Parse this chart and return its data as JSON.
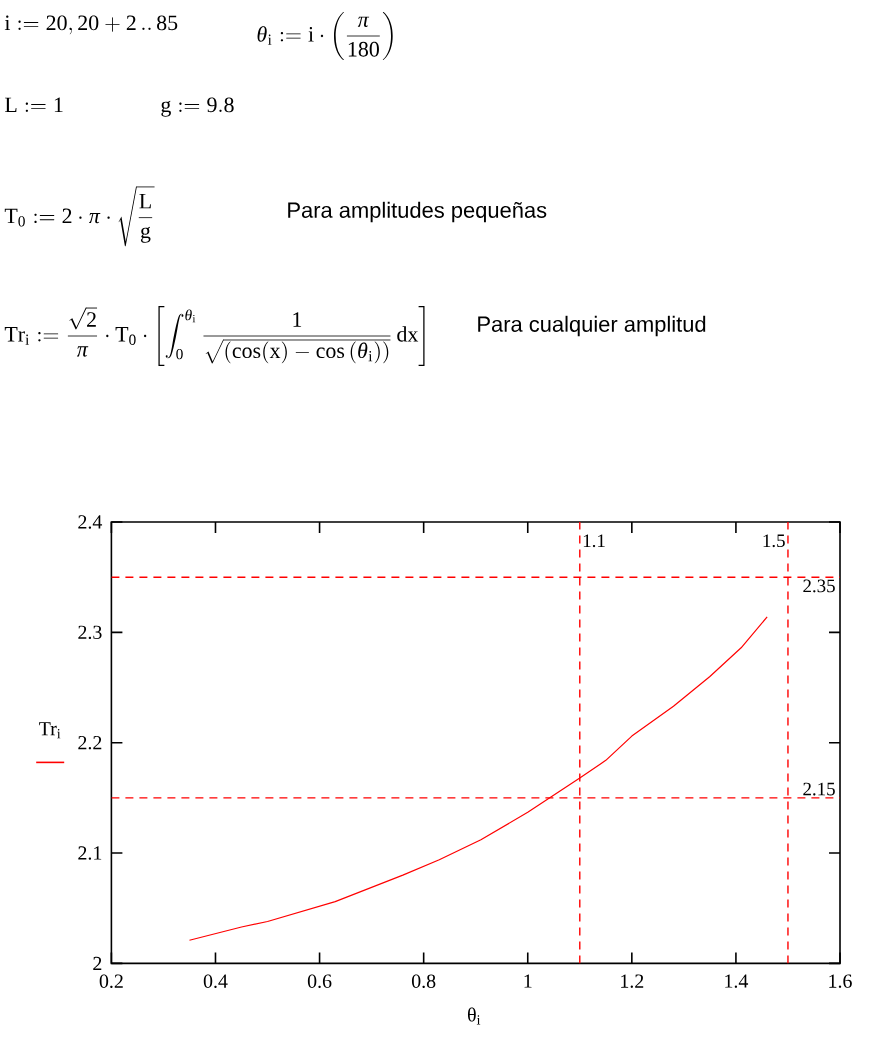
{
  "chart_data": {
    "type": "line",
    "xlabel": "θ$_{i}$",
    "ylabel": "Tr$_{i}$",
    "x": [
      0.35,
      0.45,
      0.5,
      0.63,
      0.76,
      0.83,
      0.91,
      1.0,
      1.1,
      1.15,
      1.2,
      1.28,
      1.35,
      1.41,
      1.46
    ],
    "series": [
      {
        "color": "#ff0000",
        "values": [
          2.021,
          2.033,
          2.038,
          2.056,
          2.08,
          2.094,
          2.112,
          2.137,
          2.168,
          2.184,
          2.206,
          2.233,
          2.26,
          2.286,
          2.314
        ]
      }
    ],
    "xlim": [
      0.2,
      1.6
    ],
    "ylim": [
      2,
      2.4
    ],
    "xticks": [
      0.2,
      0.4,
      0.6,
      0.8,
      1,
      1.2,
      1.4,
      1.6
    ],
    "yticks": [
      2,
      2.1,
      2.2,
      2.3,
      2.4
    ],
    "marker": "none",
    "line_style": "solid",
    "ref_lines": [
      {
        "axis": "x",
        "value": 1.1,
        "label": "1.1",
        "color": "#ff0000",
        "line_style": "dashed"
      },
      {
        "axis": "x",
        "value": 1.5,
        "label": "1.5",
        "color": "#ff0000",
        "line_style": "dashed"
      },
      {
        "axis": "y",
        "value": 2.35,
        "label": "2.35",
        "color": "#ff0000",
        "line_style": "dashed"
      },
      {
        "axis": "y",
        "value": 2.15,
        "label": "2.15",
        "color": "#ff0000",
        "line_style": "dashed"
      }
    ],
    "annotations": [
      "i := 20, 20 + 2\\,..\\,85",
      "\\theta_i := i\\cdot\\left(\\frac{\\pi}{180}\\right)",
      "L := 1",
      "g := 9.8",
      "T_0 := 2\\cdot\\pi\\cdot\\sqrt{\\frac{L}{g}}",
      "Para amplitudes pequeñas",
      "Tr_i := \\frac{\\sqrt{2}}{\\pi}\\cdot T_0\\cdot\\left[\\int_0^{\\theta_i}\\frac{1}{\\sqrt{\\left(\\cos(x) - \\cos\\left(\\theta_i\\right)\\right)}}\\,dx\\right]",
      "Para cualquier amplitud"
    ]
  }
}
